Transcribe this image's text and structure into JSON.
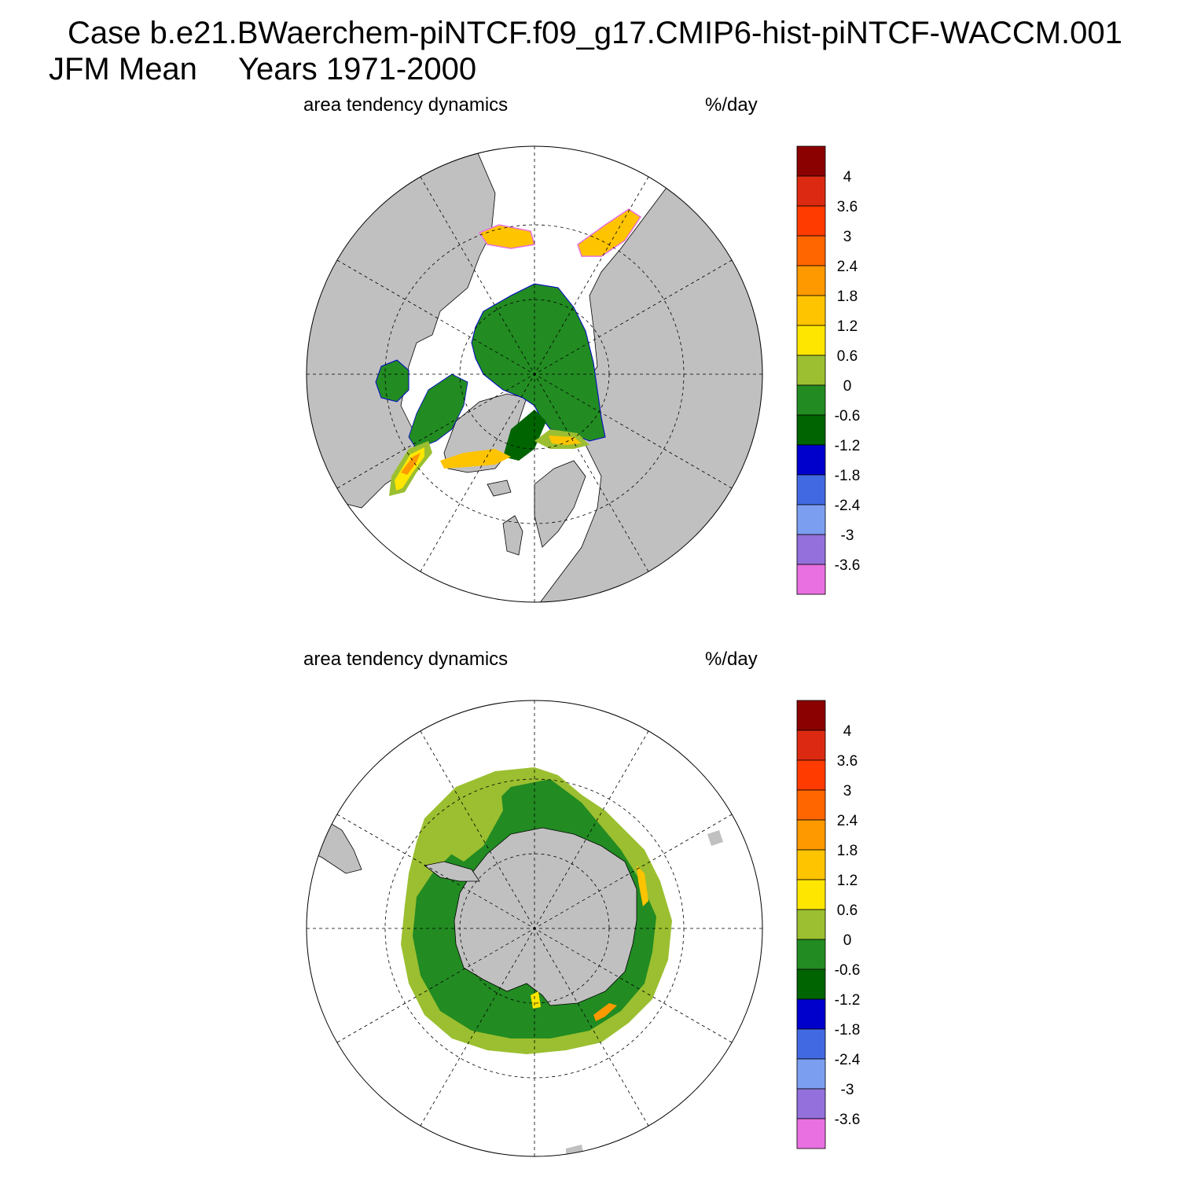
{
  "title": {
    "line1": "Case b.e21.BWaerchem-piNTCF.f09_g17.CMIP6-hist-piNTCF-WACCM.001",
    "line2_season": "JFM Mean",
    "line2_years": "Years 1971-2000"
  },
  "panels": [
    {
      "hemisphere": "north",
      "left_title": "area tendency dynamics",
      "right_title": "%/day"
    },
    {
      "hemisphere": "south",
      "left_title": "area tendency dynamics",
      "right_title": "%/day"
    }
  ],
  "colorbar": {
    "labels": [
      "4",
      "3.6",
      "3",
      "2.4",
      "1.8",
      "1.2",
      "0.6",
      "0",
      "-0.6",
      "-1.2",
      "-1.8",
      "-2.4",
      "-3",
      "-3.6"
    ],
    "colors": [
      "#8b0000",
      "#dc2a12",
      "#ff3b00",
      "#ff6600",
      "#ff9900",
      "#ffc400",
      "#ffe600",
      "#9bbf30",
      "#228b22",
      "#006400",
      "#0000cd",
      "#4169e1",
      "#7b9ef0",
      "#9370db",
      "#e870e0"
    ]
  },
  "colors": {
    "land": "#c0c0c0",
    "ice_neg_0_6": "#228b22",
    "ice_0_0_6": "#9bbf30",
    "ice_neg_1_2": "#006400"
  }
}
